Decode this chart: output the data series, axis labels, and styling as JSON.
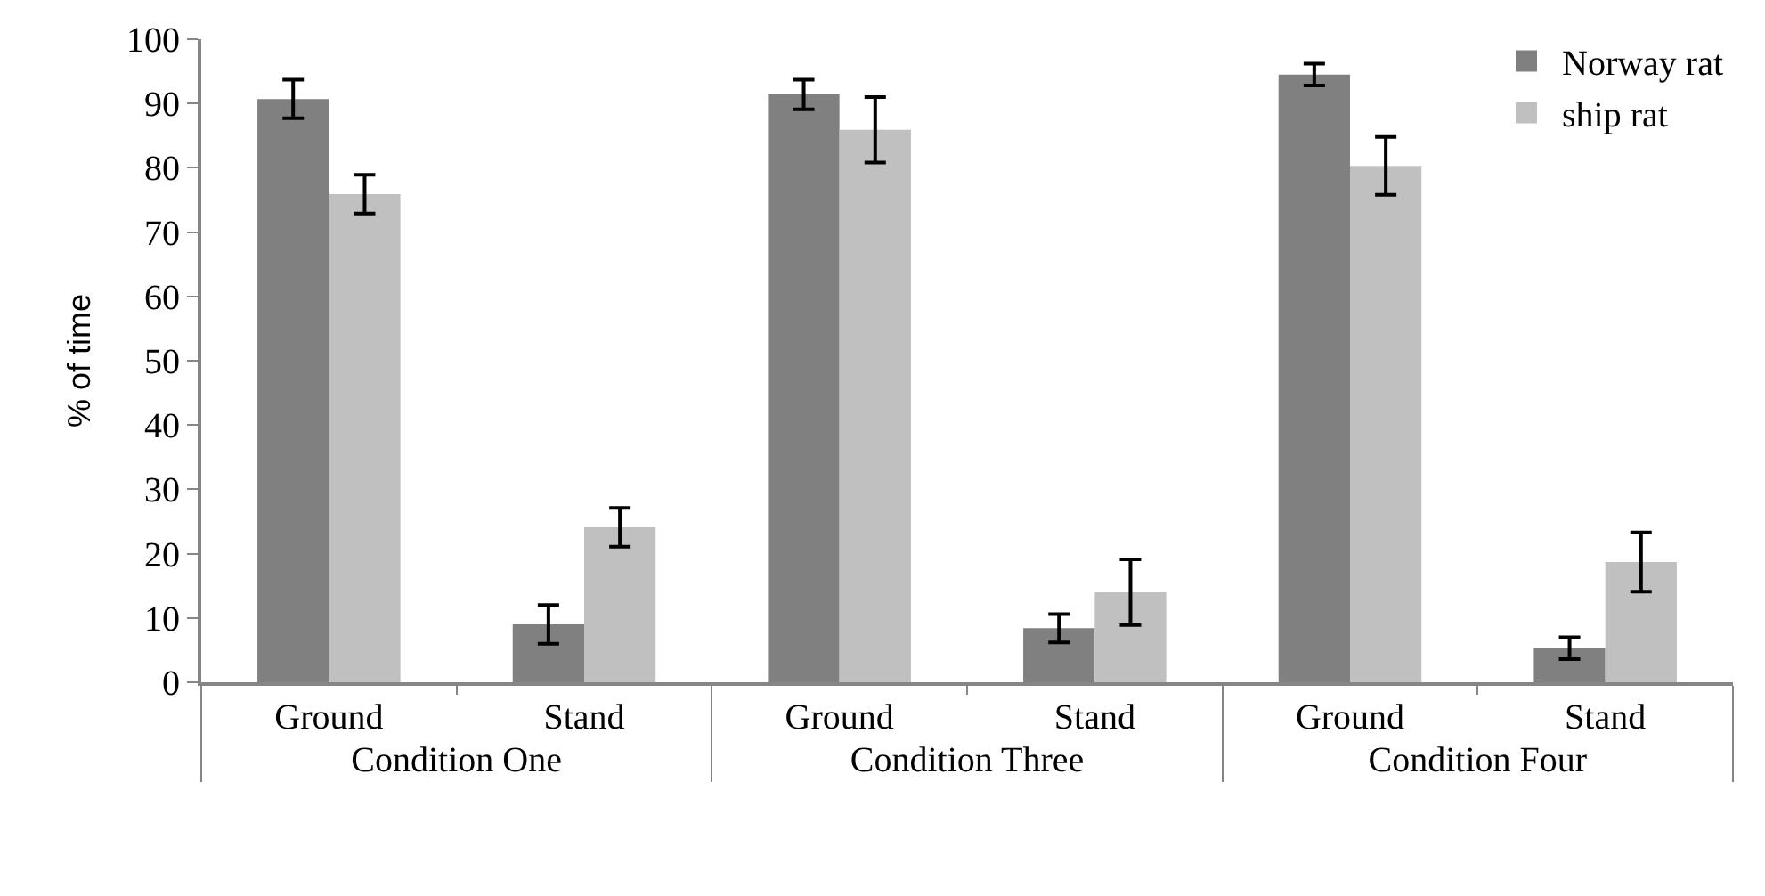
{
  "chart_data": {
    "type": "bar",
    "ylabel": "% of time",
    "categories": [
      "Ground",
      "Stand",
      "Ground",
      "Stand",
      "Ground",
      "Stand"
    ],
    "annotations": [
      "Condition One",
      "Condition Three",
      "Condition Four"
    ],
    "series": [
      {
        "name": "Norway rat",
        "color": "#808080",
        "values": [
          90.7,
          9.0,
          91.4,
          8.4,
          94.5,
          5.3
        ],
        "errors": [
          3.0,
          3.0,
          2.3,
          2.2,
          1.7,
          1.7
        ]
      },
      {
        "name": "ship rat",
        "color": "#c0c0c0",
        "values": [
          75.9,
          24.1,
          85.9,
          14.0,
          80.3,
          18.7
        ],
        "errors": [
          3.0,
          3.0,
          5.1,
          5.1,
          4.5,
          4.6
        ]
      }
    ],
    "ylim": [
      0,
      100
    ],
    "yticks": [
      0,
      10,
      20,
      30,
      40,
      50,
      60,
      70,
      80,
      90,
      100
    ],
    "legend": "top right"
  }
}
